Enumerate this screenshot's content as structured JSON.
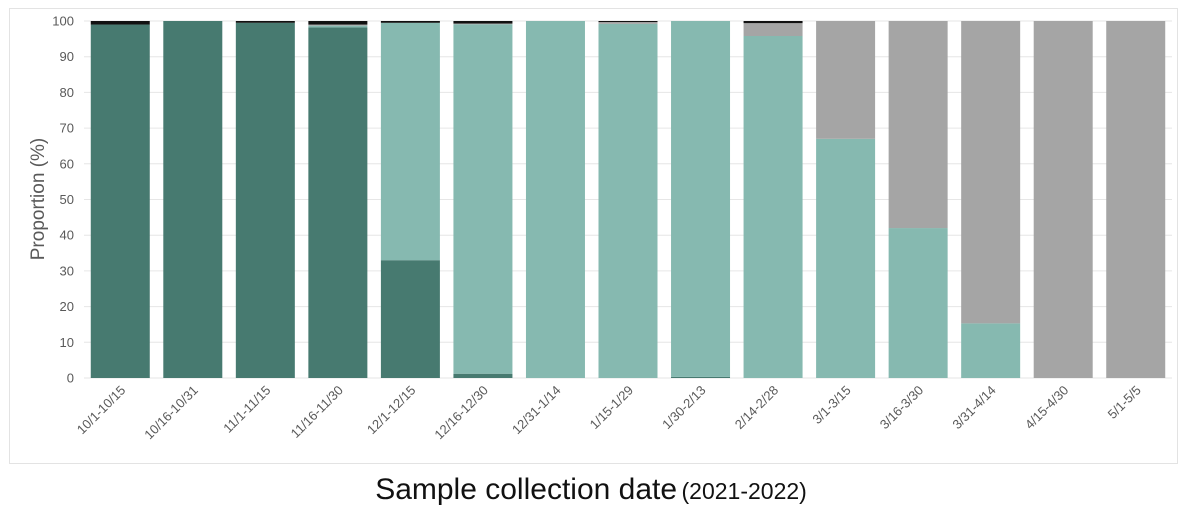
{
  "chart_data": {
    "type": "bar",
    "stacked": true,
    "categories": [
      "10/1-10/15",
      "10/16-10/31",
      "11/1-11/15",
      "11/16-11/30",
      "12/1-12/15",
      "12/16-12/30",
      "12/31-1/14",
      "1/15-1/29",
      "1/30-2/13",
      "2/14-2/28",
      "3/1-3/15",
      "3/16-3/30",
      "3/31-4/14",
      "4/15-4/30",
      "5/1-5/5"
    ],
    "series": [
      {
        "color": "#477a70",
        "values": [
          99.0,
          100,
          99.5,
          98.2,
          33.0,
          1.2,
          0,
          0,
          0.3,
          0,
          0,
          0,
          0,
          0,
          0
        ]
      },
      {
        "color": "#86b9b0",
        "values": [
          0,
          0,
          0,
          0.5,
          66.5,
          97.9,
          100,
          99.2,
          99.7,
          95.8,
          67.0,
          42.0,
          15.3,
          0,
          0
        ]
      },
      {
        "color": "#a5a5a5",
        "values": [
          0,
          0,
          0,
          0.3,
          0,
          0.2,
          0,
          0.5,
          0,
          3.6,
          33.0,
          58.0,
          84.7,
          100,
          100
        ]
      },
      {
        "color": "#111111",
        "values": [
          1.0,
          0,
          0.5,
          1.0,
          0.5,
          0.7,
          0,
          0.3,
          0,
          0.6,
          0,
          0,
          0,
          0,
          0
        ]
      }
    ],
    "ylabel": "Proportion (%)",
    "xlabel_main": "Sample collection date",
    "xlabel_sub": "(2021-2022)",
    "ylim": [
      0,
      100
    ],
    "yticks": [
      0,
      10,
      20,
      30,
      40,
      50,
      60,
      70,
      80,
      90,
      100
    ],
    "grid": true,
    "legend": "none"
  }
}
